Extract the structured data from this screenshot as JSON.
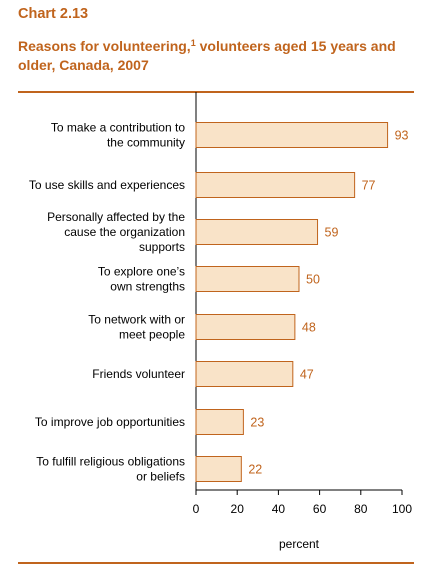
{
  "header": {
    "chart_number": "Chart 2.13",
    "title_part1": "Reasons for volunteering,",
    "title_footnote": "1",
    "title_part2": " volunteers aged 15 years and older, Canada, 2007"
  },
  "colors": {
    "accent": "#c0641d",
    "bar_fill": "#f9e3c8",
    "bar_stroke": "#c0641d"
  },
  "chart_data": {
    "type": "bar",
    "orientation": "horizontal",
    "categories": [
      [
        "To make a contribution to",
        "the community"
      ],
      [
        "To use skills and experiences"
      ],
      [
        "Personally affected by the",
        "cause the organization",
        "supports"
      ],
      [
        "To explore one’s",
        "own strengths"
      ],
      [
        "To network with or",
        "meet people"
      ],
      [
        "Friends volunteer"
      ],
      [
        "To improve job opportunities"
      ],
      [
        "To fulfill religious obligations",
        "or beliefs"
      ]
    ],
    "values": [
      93,
      77,
      59,
      50,
      48,
      47,
      23,
      22
    ],
    "xlabel": "percent",
    "xlim": [
      0,
      100
    ],
    "xticks": [
      0,
      20,
      40,
      60,
      80,
      100
    ],
    "grid": false,
    "data_labels": true
  }
}
